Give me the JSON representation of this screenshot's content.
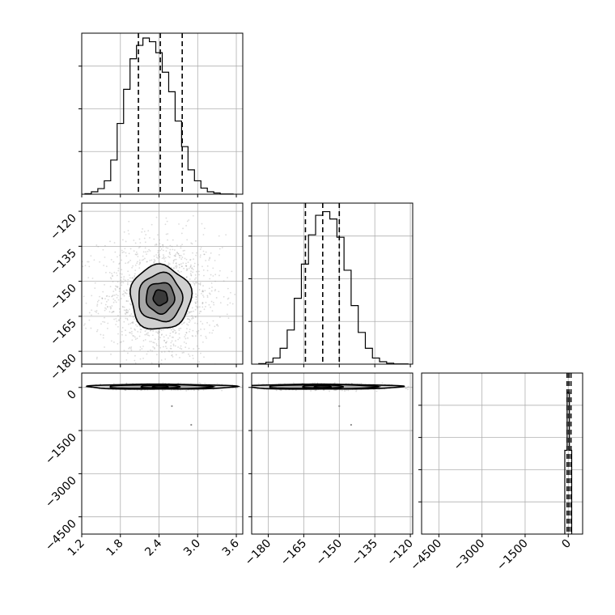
{
  "chart_data": {
    "type": "corner",
    "grid": true,
    "parameters": [
      {
        "histogram": {
          "bin_edges": [
            1.25,
            1.35,
            1.45,
            1.55,
            1.65,
            1.75,
            1.85,
            1.95,
            2.05,
            2.15,
            2.25,
            2.35,
            2.45,
            2.55,
            2.65,
            2.75,
            2.85,
            2.95,
            3.05,
            3.15,
            3.25,
            3.35,
            3.45,
            3.55
          ],
          "counts": [
            0.2,
            1.0,
            2.3,
            5.5,
            14.0,
            29.0,
            43.0,
            55.5,
            61.0,
            64.0,
            62.5,
            58.0,
            50.0,
            42.0,
            30.0,
            19.5,
            10.0,
            5.5,
            2.5,
            1.0,
            0.5,
            0.1,
            0.1
          ],
          "quantiles": [
            2.08,
            2.42,
            2.76
          ],
          "ylim": [
            0,
            66
          ]
        },
        "xlim": [
          1.2,
          3.7
        ],
        "ticks": [
          "1.2",
          "1.8",
          "2.4",
          "3.0",
          "3.6"
        ],
        "tick_values": [
          1.2,
          1.8,
          2.4,
          3.0,
          3.6
        ]
      },
      {
        "histogram": {
          "bin_edges": [
            -184,
            -181,
            -178,
            -175,
            -172,
            -169,
            -166,
            -163,
            -160,
            -157,
            -154,
            -151,
            -148,
            -145,
            -142,
            -139,
            -136,
            -133,
            -130,
            -127,
            -124,
            -121
          ],
          "counts": [
            0.2,
            0.8,
            2.5,
            6.5,
            14.0,
            27.0,
            41.0,
            53.0,
            61.0,
            62.5,
            59.5,
            52.0,
            38.5,
            24.0,
            13.0,
            6.5,
            2.5,
            1.0,
            0.4,
            0.1,
            0.1
          ],
          "quantiles": [
            -164.3,
            -157.0,
            -150.0
          ],
          "ylim": [
            0,
            66
          ]
        },
        "xlim": [
          -187,
          -119
        ],
        "ylim": [
          -185.5,
          -116.5
        ],
        "ticks": [
          "−180",
          "−165",
          "−150",
          "−135",
          "−120"
        ],
        "tick_values": [
          -180,
          -165,
          -150,
          -135,
          -120
        ]
      },
      {
        "histogram": {
          "bin_edges": [
            -120,
            -40,
            40,
            120
          ],
          "counts": [
            52,
            88,
            52
          ],
          "quantiles": [
            -40,
            25,
            95
          ],
          "ylim": [
            0,
            100
          ]
        },
        "xlim": [
          -5100,
          500
        ],
        "ylim": [
          -5100,
          500
        ],
        "ticks": [
          "−4500",
          "−3000",
          "−1500",
          "0"
        ],
        "tick_values": [
          -4500,
          -3000,
          -1500,
          0
        ]
      }
    ],
    "pairs": [
      {
        "x_param": 0,
        "y_param": 1,
        "center": [
          2.42,
          -157
        ],
        "contours_sd": [
          {
            "sx": 0.11,
            "sy": 3.3
          },
          {
            "sx": 0.22,
            "sy": 6.6
          },
          {
            "sx": 0.34,
            "sy": 10.3
          },
          {
            "sx": 0.47,
            "sy": 13.8
          }
        ],
        "scatter_sd": [
          0.41,
          11.8
        ]
      },
      {
        "x_param": 0,
        "y_param": 2,
        "center": [
          2.42,
          25
        ],
        "contours_sd": [
          {
            "sx": 0.12,
            "sy": 35
          },
          {
            "sx": 0.3,
            "sy": 55
          },
          {
            "sx": 0.8,
            "sy": 70
          },
          {
            "sx": 1.15,
            "sy": 85
          }
        ],
        "scatter_sd": [
          0.4,
          40
        ],
        "outliers": [
          [
            2.6,
            -650
          ],
          [
            2.9,
            -1300
          ]
        ]
      },
      {
        "x_param": 1,
        "y_param": 2,
        "center": [
          -157,
          25
        ],
        "contours_sd": [
          {
            "sx": 3.5,
            "sy": 35
          },
          {
            "sx": 8.5,
            "sy": 55
          },
          {
            "sx": 23,
            "sy": 70
          },
          {
            "sx": 33,
            "sy": 85
          }
        ],
        "scatter_sd": [
          12,
          40
        ],
        "outliers": [
          [
            -145,
            -1300
          ],
          [
            -150,
            -650
          ]
        ]
      }
    ]
  }
}
